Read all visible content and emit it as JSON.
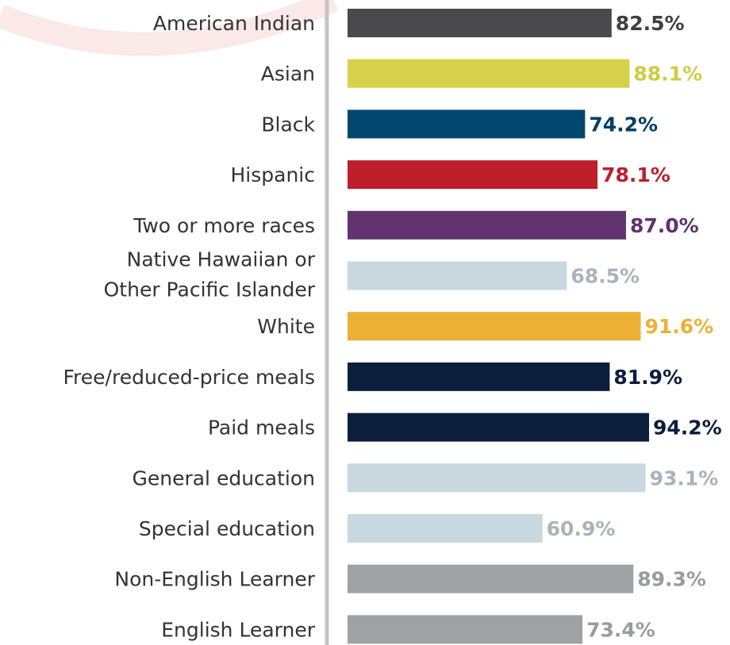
{
  "chart_data": {
    "type": "bar",
    "orientation": "horizontal",
    "categories": [
      "American Indian",
      "Asian",
      "Black",
      "Hispanic",
      "Two or more races",
      [
        "Native Hawaiian or",
        "Other Pacific Islander"
      ],
      "White",
      "Free/reduced-price meals",
      "Paid meals",
      "General education",
      "Special education",
      "Non-English Learner",
      "English Learner"
    ],
    "values": [
      82.5,
      88.1,
      74.2,
      78.1,
      87.0,
      68.5,
      91.6,
      81.9,
      94.2,
      93.1,
      60.9,
      89.3,
      73.4
    ],
    "value_labels": [
      "82.5%",
      "88.1%",
      "74.2%",
      "78.1%",
      "87.0%",
      "68.5%",
      "91.6%",
      "81.9%",
      "94.2%",
      "93.1%",
      "60.9%",
      "89.3%",
      "73.4%"
    ],
    "colors": [
      "#4a4a4c",
      "#d6d24a",
      "#00476e",
      "#bd1f2b",
      "#61336f",
      "#c8d8df",
      "#ecb034",
      "#0b1e3b",
      "#0b1e3b",
      "#c8d8df",
      "#c8d8df",
      "#a0a1a4",
      "#a0a1a4"
    ],
    "label_colors": [
      "#3f3f42",
      "#d0cc40",
      "#003f63",
      "#bd1f2b",
      "#61336f",
      "#a8b4bc",
      "#ecb034",
      "#0b1e3b",
      "#0b1e3b",
      "#a8b4bc",
      "#a8b4bc",
      "#9a9b9e",
      "#9a9b9e"
    ]
  }
}
